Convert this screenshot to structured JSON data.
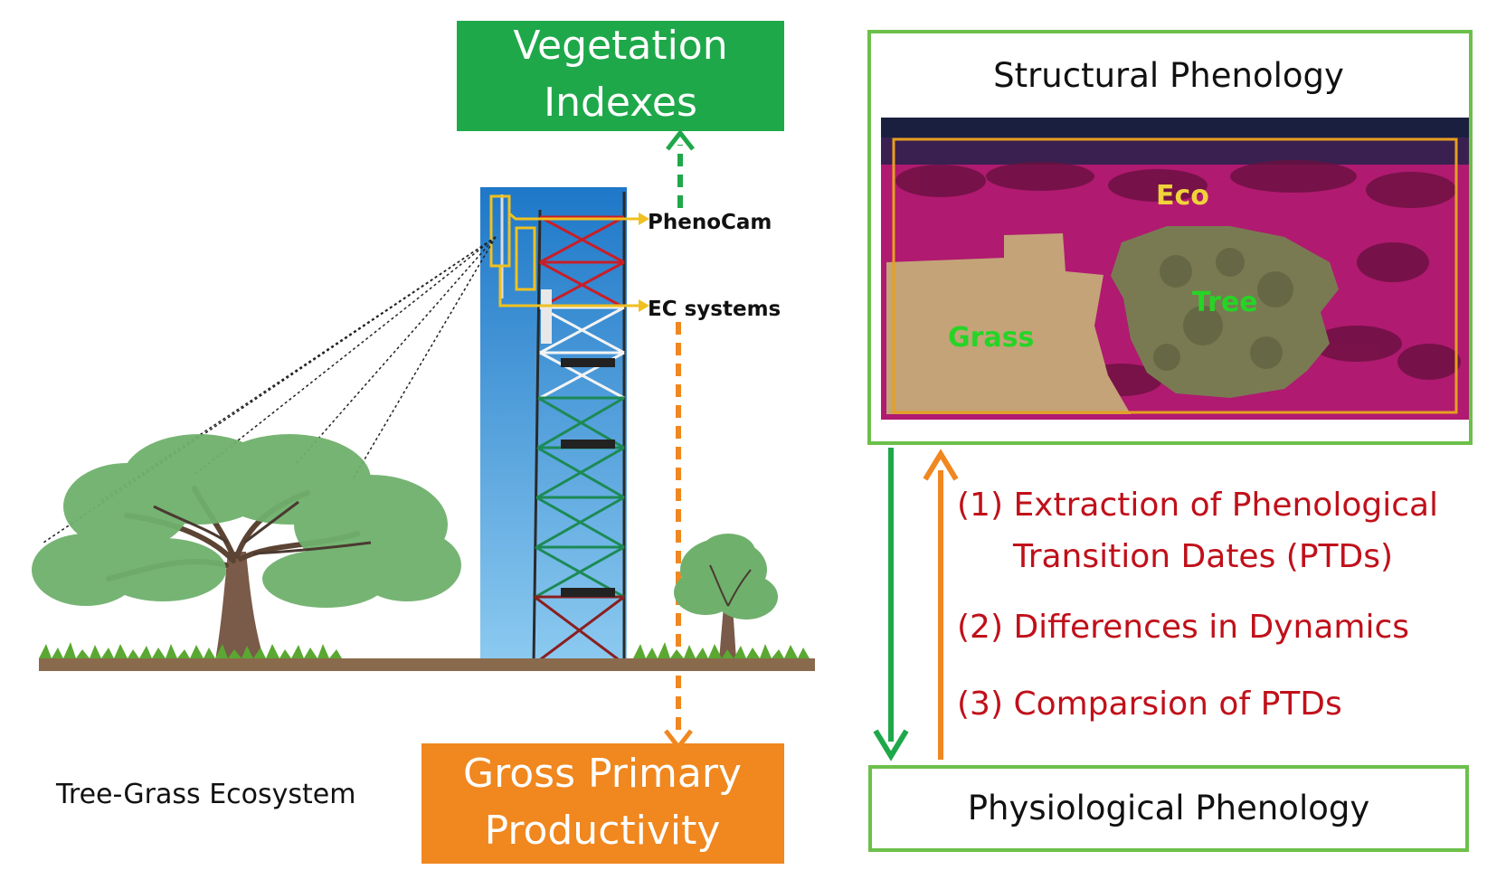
{
  "top_box": {
    "line1": "Vegetation",
    "line2": "Indexes",
    "color": "#1fa84a"
  },
  "bottom_box": {
    "line1": "Gross Primary",
    "line2": "Productivity",
    "color": "#f0871f"
  },
  "tower_labels": {
    "phenocam": "PhenoCam",
    "ec": "EC systems"
  },
  "ecosystem_label": "Tree-Grass Ecosystem",
  "structural": {
    "title": "Structural Phenology",
    "eco": "Eco",
    "tree": "Tree",
    "grass": "Grass"
  },
  "physiological": {
    "title": "Physiological Phenology"
  },
  "steps": {
    "s1a": "(1) Extraction of Phenological",
    "s1b": "Transition Dates (PTDs)",
    "s2": "(2) Differences in Dynamics",
    "s3": "(3) Comparsion of PTDs"
  },
  "colors": {
    "green": "#1fa84a",
    "orange": "#f0871f",
    "box_border": "#6cc04a",
    "step_text": "#c0101a"
  }
}
